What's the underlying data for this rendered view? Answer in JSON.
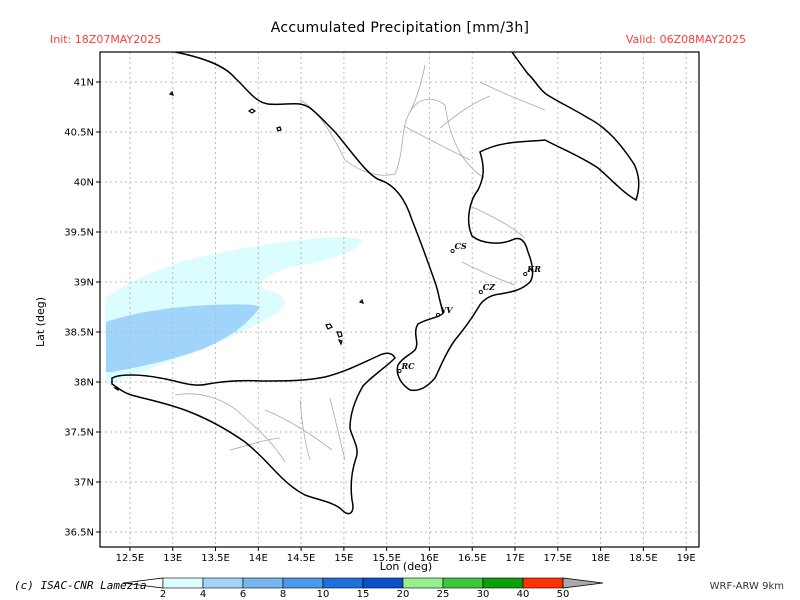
{
  "header": {
    "title": "Accumulated Precipitation [mm/3h]",
    "init": "Init: 18Z07MAY2025",
    "valid": "Valid: 06Z08MAY2025"
  },
  "footer": {
    "credit": "(c) ISAC-CNR Lamezia",
    "model": "WRF-ARW 9km"
  },
  "axes": {
    "xlabel": "Lon (deg)",
    "ylabel": "Lat (deg)",
    "lon_range": [
      12.15,
      19.15
    ],
    "lat_range": [
      36.35,
      41.3
    ],
    "lon_ticks": [
      "12.5E",
      "13E",
      "13.5E",
      "14E",
      "14.5E",
      "15E",
      "15.5E",
      "16E",
      "16.5E",
      "17E",
      "17.5E",
      "18E",
      "18.5E",
      "19E"
    ],
    "lat_ticks": [
      "36.5N",
      "37N",
      "37.5N",
      "38N",
      "38.5N",
      "39N",
      "39.5N",
      "40N",
      "40.5N",
      "41N"
    ],
    "grid": true
  },
  "colors": {
    "coast": "#000000",
    "borders": "#aaaaaa",
    "grid": "#bbbbbb",
    "precip_2_4": "#dcfdfd",
    "precip_4_6": "#a0d4fa"
  },
  "cities": [
    {
      "code": "CS",
      "lon": 16.27,
      "lat": 39.31
    },
    {
      "code": "KR",
      "lon": 17.12,
      "lat": 39.08
    },
    {
      "code": "CZ",
      "lon": 16.6,
      "lat": 38.9
    },
    {
      "code": "VV",
      "lon": 16.1,
      "lat": 38.67
    },
    {
      "code": "RC",
      "lon": 15.65,
      "lat": 38.11
    }
  ],
  "colorbar": {
    "labels": [
      "2",
      "4",
      "6",
      "8",
      "10",
      "15",
      "20",
      "25",
      "30",
      "40",
      "50"
    ],
    "colors": [
      "#dcfdfd",
      "#a0d4fa",
      "#78b6f0",
      "#4b9aea",
      "#1e6fdc",
      "#0a50c8",
      "#96f08c",
      "#3cc83c",
      "#0aa00a",
      "#ff3200",
      "#aaaaaa"
    ]
  }
}
